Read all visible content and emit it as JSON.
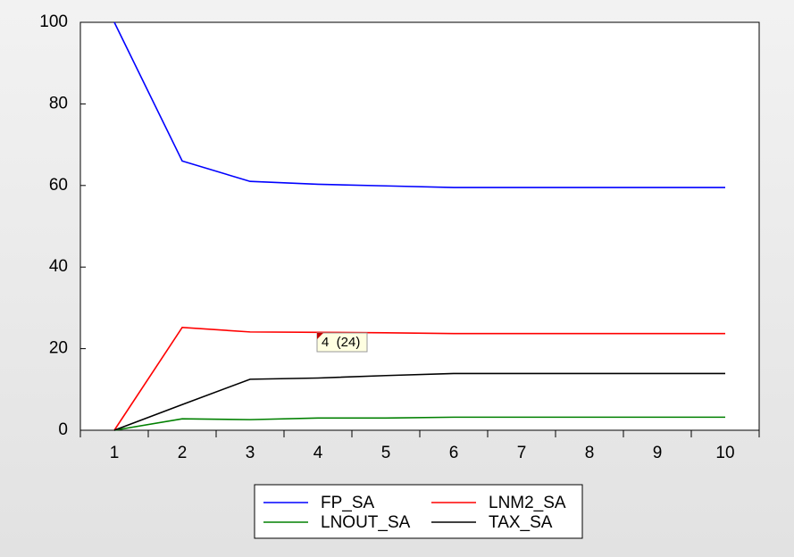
{
  "chart_data": {
    "type": "line",
    "categories": [
      "1",
      "2",
      "3",
      "4",
      "5",
      "6",
      "7",
      "8",
      "9",
      "10"
    ],
    "series": [
      {
        "name": "FP_SA",
        "color": "#0000ff",
        "values": [
          100,
          66,
          61,
          60.3,
          59.9,
          59.5,
          59.5,
          59.5,
          59.5,
          59.5
        ]
      },
      {
        "name": "LNM2_SA",
        "color": "#ff0000",
        "values": [
          0,
          25.2,
          24.1,
          24.0,
          23.9,
          23.7,
          23.7,
          23.7,
          23.7,
          23.7
        ]
      },
      {
        "name": "LNOUT_SA",
        "color": "#008000",
        "values": [
          0,
          2.8,
          2.6,
          3.0,
          3.0,
          3.2,
          3.2,
          3.2,
          3.2,
          3.2
        ]
      },
      {
        "name": "TAX_SA",
        "color": "#000000",
        "values": [
          0,
          6.3,
          12.5,
          12.8,
          13.4,
          13.9,
          13.9,
          13.9,
          13.9,
          13.9
        ]
      }
    ],
    "ylim": [
      0,
      100
    ],
    "yticks": [
      0,
      20,
      40,
      60,
      80,
      100
    ],
    "grid": false,
    "legend": "bottom",
    "annotation": "4  (24)"
  }
}
